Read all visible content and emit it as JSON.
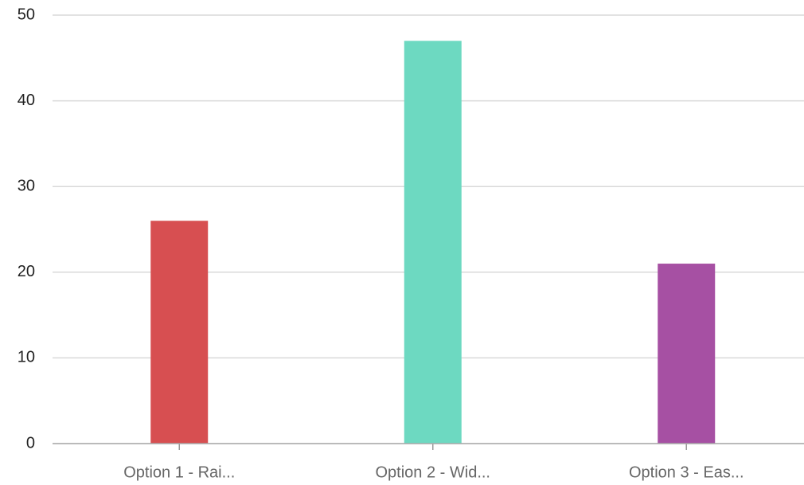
{
  "chart_data": {
    "type": "bar",
    "categories": [
      "Option 1 - Rai...",
      "Option 2 - Wid...",
      "Option 3 - Eas..."
    ],
    "values": [
      26,
      47,
      21
    ],
    "colors": [
      "#d64b4e",
      "#6ad8c0",
      "#a44ca1"
    ],
    "ylim": [
      0,
      50
    ],
    "yticks": [
      0,
      10,
      20,
      30,
      40,
      50
    ],
    "grid": true
  }
}
